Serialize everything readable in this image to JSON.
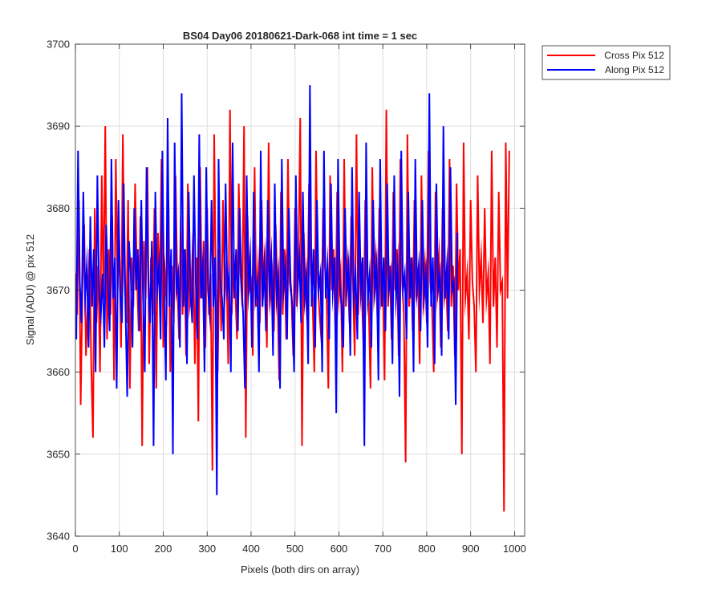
{
  "chart_data": {
    "type": "line",
    "title": "BS04 Day06 20180621-Dark-068 int time = 1 sec",
    "xlabel": "Pixels (both dirs on array)",
    "ylabel": "Signal (ADU) @ pix 512",
    "xlim": [
      0,
      1023
    ],
    "ylim": [
      3640,
      3700
    ],
    "xticks": [
      0,
      100,
      200,
      300,
      400,
      500,
      600,
      700,
      800,
      900,
      1000
    ],
    "yticks": [
      3640,
      3650,
      3660,
      3670,
      3680,
      3690,
      3700
    ],
    "grid": true,
    "legend_position": "outside-top-right",
    "series": [
      {
        "name": "Cross Pix 512",
        "color": "#ff0000",
        "x_start": 0,
        "x_step": 4,
        "values": [
          3672,
          3667,
          3681,
          3656,
          3670,
          3678,
          3662,
          3668,
          3675,
          3661,
          3652,
          3680,
          3666,
          3673,
          3660,
          3684,
          3669,
          3690,
          3664,
          3675,
          3667,
          3679,
          3659,
          3686,
          3670,
          3676,
          3663,
          3689,
          3671,
          3666,
          3681,
          3658,
          3674,
          3668,
          3683,
          3672,
          3665,
          3679,
          3651,
          3676,
          3669,
          3685,
          3661,
          3674,
          3667,
          3680,
          3658,
          3677,
          3670,
          3686,
          3663,
          3672,
          3668,
          3681,
          3660,
          3673,
          3666,
          3684,
          3671,
          3664,
          3679,
          3667,
          3675,
          3662,
          3683,
          3668,
          3670,
          3677,
          3661,
          3674,
          3654,
          3685,
          3669,
          3676,
          3663,
          3680,
          3667,
          3672,
          3648,
          3689,
          3670,
          3660,
          3675,
          3665,
          3681,
          3669,
          3673,
          3661,
          3692,
          3667,
          3674,
          3670,
          3664,
          3683,
          3672,
          3668,
          3690,
          3652,
          3679,
          3670,
          3671,
          3662,
          3685,
          3668,
          3673,
          3666,
          3681,
          3670,
          3674,
          3663,
          3688,
          3669,
          3672,
          3665,
          3678,
          3670,
          3659,
          3682,
          3667,
          3675,
          3664,
          3686,
          3671,
          3669,
          3662,
          3680,
          3668,
          3674,
          3691,
          3651,
          3677,
          3670,
          3666,
          3683,
          3672,
          3669,
          3660,
          3687,
          3671,
          3667,
          3664,
          3680,
          3673,
          3669,
          3658,
          3684,
          3670,
          3675,
          3665,
          3682,
          3669,
          3672,
          3660,
          3686,
          3668,
          3673,
          3666,
          3679,
          3671,
          3662,
          3689,
          3667,
          3675,
          3670,
          3663,
          3681,
          3672,
          3668,
          3658,
          3685,
          3670,
          3674,
          3666,
          3680,
          3669,
          3671,
          3659,
          3692,
          3668,
          3673,
          3664,
          3682,
          3670,
          3675,
          3662,
          3686,
          3671,
          3667,
          3649,
          3689,
          3668,
          3674,
          3665,
          3681,
          3670,
          3672,
          3661,
          3684,
          3669,
          3673,
          3666,
          3687,
          3671,
          3668,
          3660,
          3682,
          3670,
          3674,
          3663,
          3680,
          3669,
          3671,
          3665,
          3686,
          3668,
          3673,
          3662,
          3683,
          3670,
          3675,
          3650,
          3688,
          3669,
          3672,
          3664,
          3681,
          3671,
          3668,
          3660,
          3684,
          3670,
          3674,
          3666,
          3680,
          3669,
          3672,
          3661,
          3687,
          3668,
          3674,
          3663,
          3682,
          3670,
          3671,
          3643,
          3688,
          3669,
          3687
        ]
      },
      {
        "name": "Along Pix 512",
        "color": "#0000ff",
        "x_start": 2,
        "x_step": 4,
        "values": [
          3664,
          3687,
          3671,
          3666,
          3682,
          3669,
          3673,
          3663,
          3679,
          3668,
          3675,
          3660,
          3684,
          3670,
          3667,
          3672,
          3663,
          3678,
          3671,
          3665,
          3686,
          3669,
          3674,
          3658,
          3681,
          3670,
          3666,
          3683,
          3668,
          3657,
          3676,
          3672,
          3663,
          3680,
          3670,
          3675,
          3665,
          3681,
          3669,
          3660,
          3685,
          3671,
          3666,
          3676,
          3651,
          3682,
          3670,
          3673,
          3664,
          3687,
          3669,
          3659,
          3691,
          3668,
          3675,
          3650,
          3688,
          3670,
          3672,
          3663,
          3694,
          3668,
          3675,
          3661,
          3682,
          3670,
          3666,
          3684,
          3671,
          3664,
          3689,
          3669,
          3673,
          3660,
          3685,
          3670,
          3667,
          3681,
          3668,
          3674,
          3645,
          3686,
          3671,
          3669,
          3664,
          3683,
          3670,
          3672,
          3660,
          3688,
          3669,
          3675,
          3665,
          3680,
          3671,
          3667,
          3658,
          3684,
          3670,
          3674,
          3663,
          3682,
          3669,
          3671,
          3660,
          3687,
          3668,
          3673,
          3665,
          3681,
          3670,
          3674,
          3662,
          3683,
          3669,
          3672,
          3658,
          3686,
          3670,
          3673,
          3664,
          3680,
          3671,
          3668,
          3660,
          3684,
          3670,
          3674,
          3666,
          3682,
          3669,
          3672,
          3661,
          3695,
          3668,
          3675,
          3663,
          3681,
          3670,
          3672,
          3660,
          3687,
          3669,
          3673,
          3664,
          3683,
          3670,
          3674,
          3655,
          3686,
          3671,
          3668,
          3663,
          3680,
          3670,
          3673,
          3662,
          3685,
          3669,
          3672,
          3664,
          3682,
          3670,
          3674,
          3651,
          3688,
          3669,
          3672,
          3663,
          3681,
          3670,
          3673,
          3659,
          3686,
          3668,
          3674,
          3665,
          3683,
          3670,
          3672,
          3661,
          3684,
          3669,
          3673,
          3657,
          3687,
          3670,
          3672,
          3664,
          3682,
          3669,
          3674,
          3660,
          3686,
          3670,
          3673,
          3665,
          3681,
          3669,
          3672,
          3663,
          3694,
          3668,
          3674,
          3661,
          3683,
          3670,
          3672,
          3662,
          3690,
          3669,
          3673,
          3664,
          3685,
          3670,
          3671,
          3656,
          3677
        ]
      }
    ]
  }
}
